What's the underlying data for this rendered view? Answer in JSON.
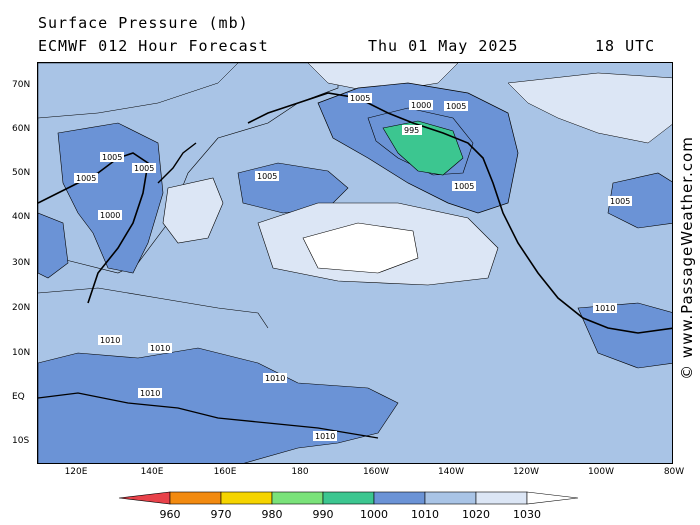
{
  "header": {
    "title": "Surface Pressure (mb)",
    "subtitle": "ECMWF 012 Hour Forecast",
    "date": "Thu 01 May 2025",
    "time": "18 UTC"
  },
  "watermark": "© www.PassageWeather.com",
  "map": {
    "lat_labels": [
      "70N",
      "60N",
      "50N",
      "40N",
      "30N",
      "20N",
      "10N",
      "EQ",
      "10S"
    ],
    "lon_labels": [
      "120E",
      "140E",
      "160E",
      "180",
      "160W",
      "140W",
      "120W",
      "100W",
      "80W"
    ],
    "isobar_labels": [
      "1005",
      "1000",
      "995",
      "1010"
    ]
  },
  "colorbar": {
    "ticks": [
      "960",
      "970",
      "980",
      "990",
      "1000",
      "1010",
      "1020",
      "1030"
    ],
    "colors": [
      "#e8424a",
      "#f28a10",
      "#f5d400",
      "#7ae27a",
      "#3cc690",
      "#6b93d6",
      "#a9c4e6",
      "#dce6f5",
      "#ffffff"
    ]
  }
}
